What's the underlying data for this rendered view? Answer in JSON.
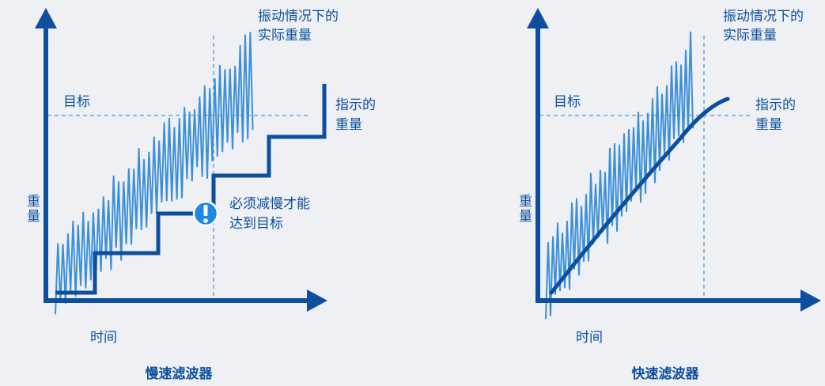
{
  "panels": [
    {
      "title": "慢速滤波器",
      "y_label": "重量",
      "x_label": "时间",
      "target_label": "目标",
      "actual_label_line1": "振动情况下的",
      "actual_label_line2": "实际重量",
      "indicated_label_line1": "指示的",
      "indicated_label_line2": "重量",
      "warning_line1": "必须减慢才能",
      "warning_line2": "达到目标",
      "warning_icon": "exclamation-icon"
    },
    {
      "title": "快速滤波器",
      "y_label": "重量",
      "x_label": "时间",
      "target_label": "目标",
      "actual_label_line1": "振动情况下的",
      "actual_label_line2": "实际重量",
      "indicated_label_line1": "指示的",
      "indicated_label_line2": "重量"
    }
  ],
  "colors": {
    "background": "#eef0f3",
    "axis": "#0d4f9e",
    "signal": "#3d8fd8",
    "indicated": "#0d4f9e",
    "dashed": "#4a9bd6",
    "warning": "#1e88e5"
  }
}
